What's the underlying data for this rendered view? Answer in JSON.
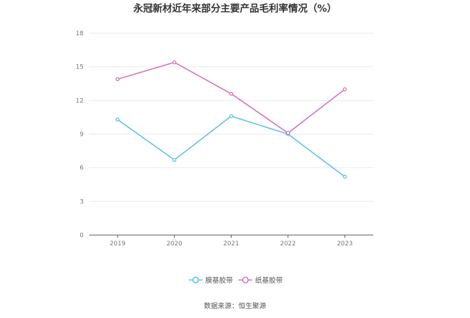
{
  "chart_data": {
    "type": "line",
    "title": "永冠新材近年来部分主要产品毛利率情况（%）",
    "categories": [
      "2019",
      "2020",
      "2021",
      "2022",
      "2023"
    ],
    "series": [
      {
        "name": "膜基胶带",
        "color": "#5bc0ea",
        "values": [
          10.3,
          6.7,
          10.6,
          9.0,
          5.2
        ]
      },
      {
        "name": "纸基胶带",
        "color": "#d770b7",
        "values": [
          13.9,
          15.4,
          12.6,
          9.1,
          13.0
        ]
      }
    ],
    "ylim": [
      0,
      18
    ],
    "yticks": [
      0,
      3,
      6,
      9,
      12,
      15,
      18
    ],
    "grid": true,
    "legend_position": "bottom"
  },
  "source_text": "数据来源：恒生聚源"
}
